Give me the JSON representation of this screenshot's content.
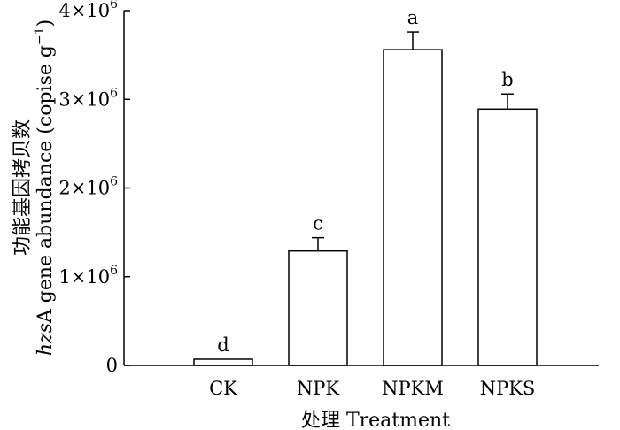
{
  "chart_data": {
    "type": "bar",
    "categories": [
      "CK",
      "NPK",
      "NPKM",
      "NPKS"
    ],
    "values": [
      70000,
      1290000,
      3560000,
      2890000
    ],
    "errors": [
      0,
      150000,
      200000,
      170000
    ],
    "significance": [
      "d",
      "c",
      "a",
      "b"
    ],
    "ylim": [
      0,
      4000000
    ],
    "y_ticks": [
      {
        "value": 0,
        "base": "0",
        "exp": ""
      },
      {
        "value": 1000000,
        "base": "1×10",
        "exp": "6"
      },
      {
        "value": 2000000,
        "base": "2×10",
        "exp": "6"
      },
      {
        "value": 3000000,
        "base": "3×10",
        "exp": "6"
      },
      {
        "value": 4000000,
        "base": "4×10",
        "exp": "6"
      }
    ],
    "xlabel": "处理 Treatment",
    "ylabel_line1": "功能基因拷贝数",
    "ylabel_line2_italic": "hzs",
    "ylabel_line2_rest": "A gene abundance (copise g",
    "ylabel_line2_sup": "−1",
    "ylabel_line2_close": ")",
    "grid": false,
    "legend": "none",
    "bar_fill": "#ffffff",
    "bar_stroke": "#000000"
  }
}
